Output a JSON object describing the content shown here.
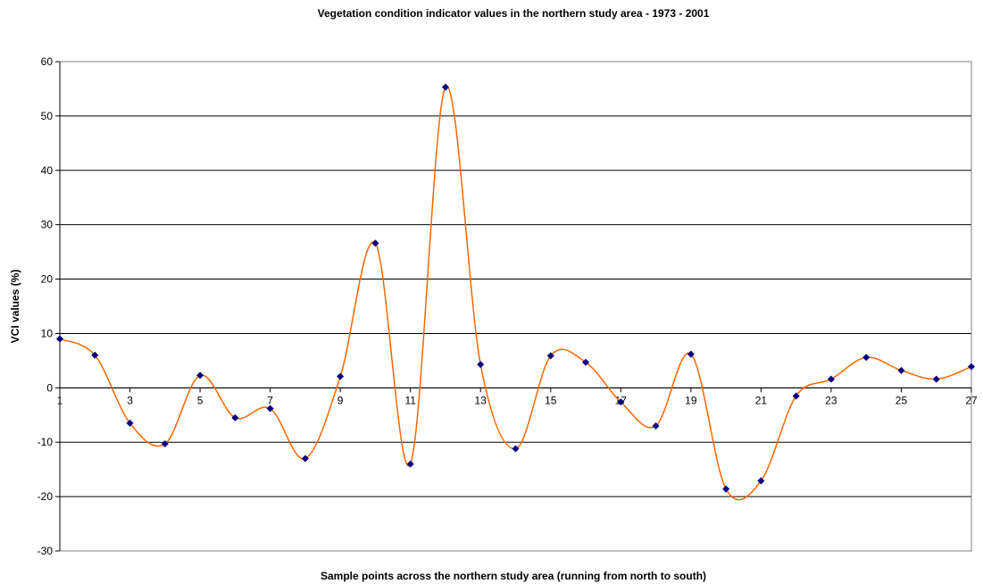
{
  "chart_data": {
    "type": "line",
    "title": "Vegetation condition indicator values in the northern study area - 1973 - 2001",
    "x_label": "Sample points across the northern study area (running from north to south)",
    "y_label": "VCI values (%)",
    "x": [
      1,
      2,
      3,
      4,
      5,
      6,
      7,
      8,
      9,
      10,
      11,
      12,
      13,
      14,
      15,
      16,
      17,
      18,
      19,
      20,
      21,
      22,
      23,
      24,
      25,
      26,
      27
    ],
    "series": [
      {
        "name": "VCI",
        "color": "#ff6600",
        "marker_color": "#000080",
        "values": [
          9.0,
          6.0,
          -6.5,
          -10.3,
          2.3,
          -5.5,
          -3.8,
          -13.0,
          2.1,
          26.6,
          -14.0,
          55.3,
          4.3,
          -11.2,
          5.9,
          4.7,
          -2.6,
          -7.0,
          6.2,
          -18.6,
          -17.1,
          -1.5,
          1.6,
          5.6,
          3.2,
          1.6,
          3.9
        ]
      }
    ],
    "xlim": [
      1,
      27
    ],
    "xticks": [
      1,
      3,
      5,
      7,
      9,
      11,
      13,
      15,
      17,
      19,
      21,
      23,
      25,
      27
    ],
    "ylim": [
      -30,
      60
    ],
    "yticks": [
      -30,
      -20,
      -10,
      0,
      10,
      20,
      30,
      40,
      50,
      60
    ],
    "grid": true,
    "smooth": true
  }
}
